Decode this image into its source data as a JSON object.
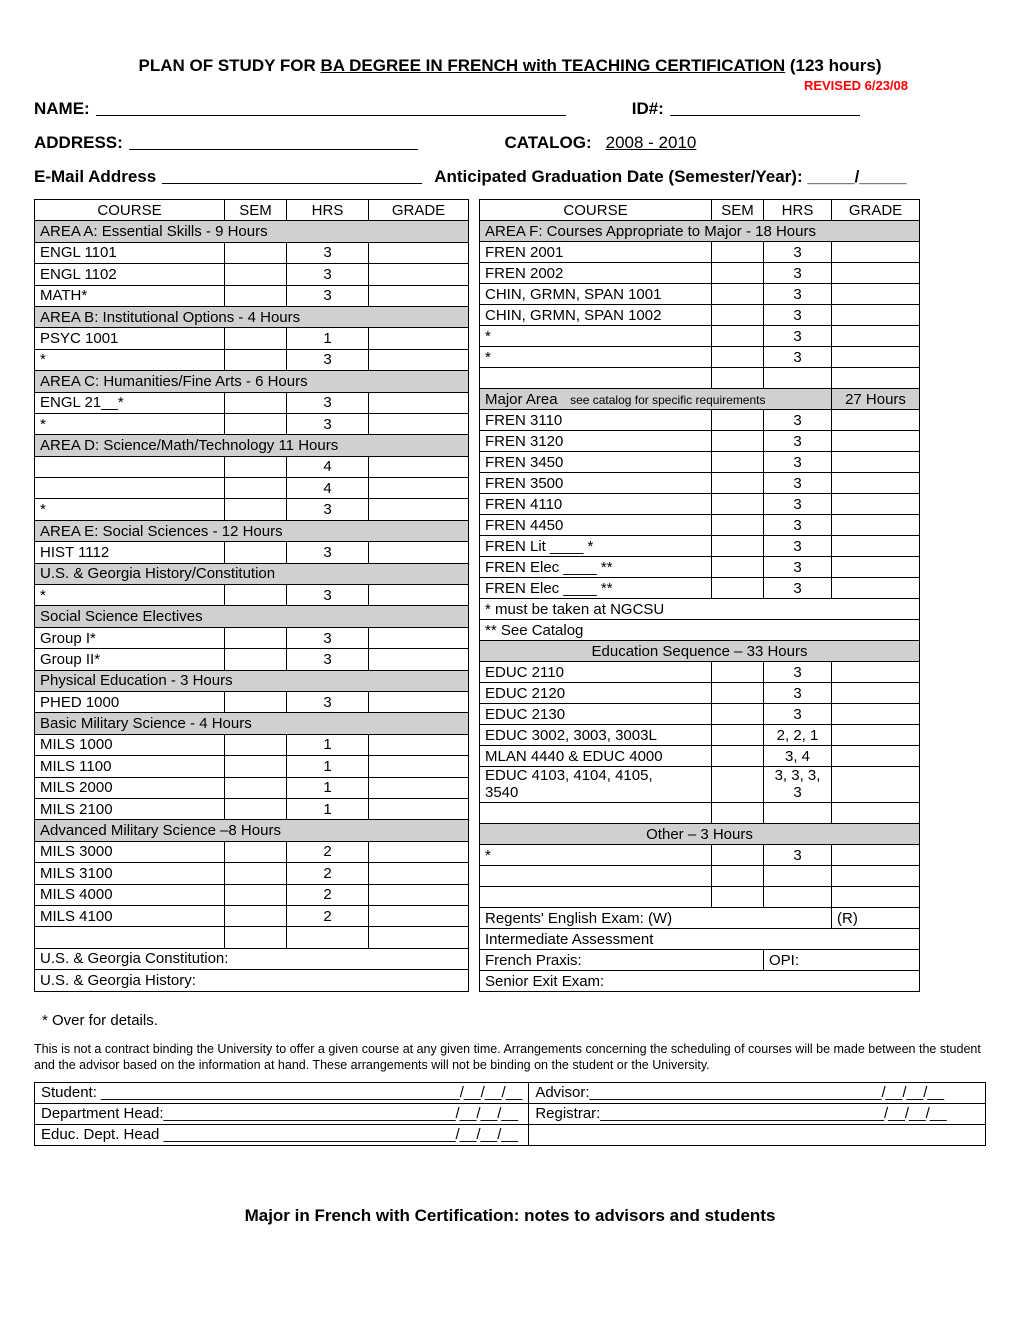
{
  "title_prefix": "PLAN OF STUDY FOR ",
  "title_ul": "BA DEGREE IN FRENCH with TEACHING CERTIFICATION",
  "title_suffix": " (123 hours)",
  "revised": "REVISED 6/23/08",
  "labels": {
    "name": "NAME:",
    "id": "ID#:",
    "address": "ADDRESS:",
    "catalog": "CATALOG:",
    "catalog_val": " 2008 - 2010 ",
    "email": "E-Mail Address",
    "grad": "Anticipated Graduation Date (Semester/Year): _____/_____"
  },
  "col": {
    "course": "COURSE",
    "sem": "SEM",
    "hrs": "HRS",
    "grade": "GRADE"
  },
  "left": {
    "areaA": "AREA A: Essential Skills - 9 Hours",
    "a": [
      {
        "c": "ENGL 1101",
        "h": "3"
      },
      {
        "c": "ENGL 1102",
        "h": "3"
      },
      {
        "c": "MATH*",
        "h": "3"
      }
    ],
    "areaB": "AREA B: Institutional Options - 4 Hours",
    "b": [
      {
        "c": "PSYC 1001",
        "h": "1"
      },
      {
        "c": "*",
        "h": "3"
      }
    ],
    "areaC": " AREA C: Humanities/Fine Arts - 6 Hours",
    "c": [
      {
        "c": "ENGL 21__*",
        "h": "3"
      },
      {
        "c": "*",
        "h": "3"
      }
    ],
    "areaD": "AREA D: Science/Math/Technology  11 Hours",
    "d": [
      {
        "c": " ",
        "h": "4"
      },
      {
        "c": " ",
        "h": "4"
      },
      {
        "c": "*",
        "h": "3"
      }
    ],
    "areaE": "AREA E: Social Sciences - 12 Hours",
    "e1": [
      {
        "c": "HIST 1112",
        "h": "3"
      }
    ],
    "e_usg": " U.S. & Georgia History/Constitution",
    "e2": [
      {
        "c": "*",
        "h": "3"
      }
    ],
    "e_sse": " Social Science Electives",
    "e3": [
      {
        "c": "Group I*",
        "h": "3"
      },
      {
        "c": "Group II*",
        "h": "3"
      }
    ],
    "pe_hdr": " Physical Education -   3 Hours",
    "pe": [
      {
        "c": "PHED 1000",
        "h": "3"
      }
    ],
    "bms_hdr": "Basic Military Science - 4 Hours",
    "bms": [
      {
        "c": "MILS 1000",
        "h": "1"
      },
      {
        "c": "MILS 1100",
        "h": "1"
      },
      {
        "c": "MILS 2000",
        "h": "1"
      },
      {
        "c": "MILS 2100",
        "h": "1"
      }
    ],
    "ams_hdr": "Advanced Military Science –8 Hours",
    "ams": [
      {
        "c": "MILS 3000",
        "h": "2"
      },
      {
        "c": "MILS 3100",
        "h": "2"
      },
      {
        "c": "MILS 4000",
        "h": "2"
      },
      {
        "c": "MILS 4100",
        "h": "2"
      }
    ],
    "blank": " ",
    "usg_const": "U.S. & Georgia Constitution:",
    "usg_hist": "U.S. & Georgia History:"
  },
  "right": {
    "areaF": "AREA F: Courses Appropriate to Major - 18 Hours",
    "f": [
      {
        "c": "FREN   2001",
        "h": "3"
      },
      {
        "c": "FREN   2002",
        "h": "3"
      },
      {
        "c": "CHIN, GRMN, SPAN 1001",
        "h": "3",
        "small": true
      },
      {
        "c": "CHIN, GRMN, SPAN 1002",
        "h": "3",
        "small": true
      },
      {
        "c": "*",
        "h": "3"
      },
      {
        "c": "*",
        "h": "3"
      }
    ],
    "major_hdr_a": "Major Area",
    "major_hdr_b": "see catalog for specific requirements",
    "major_hdr_c": "27 Hours",
    "major": [
      {
        "c": "FREN  3110",
        "h": "3"
      },
      {
        "c": "FREN  3120",
        "h": "3"
      },
      {
        "c": "FREN  3450",
        "h": "3"
      },
      {
        "c": "FREN  3500",
        "h": "3"
      },
      {
        "c": "FREN  4110",
        "h": "3"
      },
      {
        "c": "FREN  4450",
        "h": "3"
      },
      {
        "c": "FREN  Lit ____  *",
        "h": "3"
      },
      {
        "c": "FREN  Elec ____  **",
        "h": "3"
      },
      {
        "c": "FREN  Elec ____  **",
        "h": "3"
      }
    ],
    "note_ngcsu": "* must be taken at NGCSU",
    "note_catalog": "** See Catalog",
    "edu_hdr": "Education Sequence –    33 Hours",
    "edu": [
      {
        "c": "EDUC 2110",
        "h": "3"
      },
      {
        "c": "EDUC 2120",
        "h": "3"
      },
      {
        "c": "EDUC 2130",
        "h": "3"
      },
      {
        "c": "EDUC 3002, 3003, 3003L",
        "h": "2, 2, 1",
        "small": true
      },
      {
        "c": "MLAN 4440 & EDUC 4000",
        "h": "3, 4",
        "small": true
      },
      {
        "c": "EDUC 4103, 4104, 4105,",
        "c2": "3540",
        "h": "3, 3, 3,",
        "h2": "3",
        "small": true,
        "two": true
      }
    ],
    "other_hdr": "Other –   3 Hours",
    "other": [
      {
        "c": "  *",
        "h": "3"
      }
    ],
    "regents_a": "Regents' English Exam: (W)",
    "regents_b": "(R)",
    "intermediate": "Intermediate Assessment",
    "praxis_a": "French Praxis:",
    "praxis_b": "OPI:",
    "senior": "Senior Exit Exam:"
  },
  "footnote": "*    Over for details.",
  "disclaimer": "This is not a contract binding the University to offer a given course at any given time.  Arrangements concerning the scheduling of courses will be made between the student and the advisor based on the information at hand.  These arrangements will not be binding on the student or the University.",
  "sig": {
    "student": "Student: ___________________________________________/__/__/__",
    "advisor": "Advisor:___________________________________/__/__/__",
    "dept": "Department Head:___________________________________/__/__/__",
    "reg": "Registrar:__________________________________/__/__/__",
    "educ": "Educ. Dept. Head ___________________________________/__/__/__"
  },
  "bottom_title": "Major in French with Certification: notes to advisors and students",
  "colwidths": {
    "course": 190,
    "sem": 62,
    "hrs": 82,
    "grade": 100,
    "course_r": 232,
    "sem_r": 52,
    "hrs_r": 68,
    "grade_r": 88
  },
  "colors": {
    "hdr_bg": "#d0d0d0",
    "red": "#ff0000"
  }
}
